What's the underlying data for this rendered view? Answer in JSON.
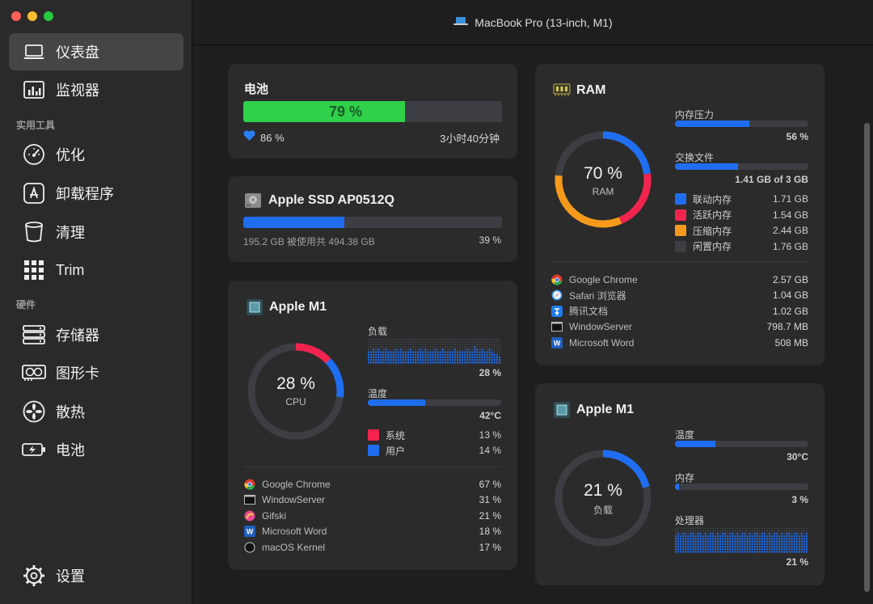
{
  "window": {
    "title": "MacBook Pro (13-inch, M1)",
    "traffic_colors": [
      "#fe5f57",
      "#febc2e",
      "#28c840"
    ]
  },
  "sidebar": {
    "items": [
      {
        "label": "仪表盘",
        "icon": "laptop-icon"
      },
      {
        "label": "监视器",
        "icon": "chart-icon"
      }
    ],
    "tools_label": "实用工具",
    "tools": [
      {
        "label": "优化",
        "icon": "gauge-icon"
      },
      {
        "label": "卸载程序",
        "icon": "appstore-icon"
      },
      {
        "label": "清理",
        "icon": "trash-icon"
      },
      {
        "label": "Trim",
        "icon": "grid-icon"
      }
    ],
    "hardware_label": "硬件",
    "hardware": [
      {
        "label": "存储器",
        "icon": "storage-icon"
      },
      {
        "label": "图形卡",
        "icon": "gpu-icon"
      },
      {
        "label": "散热",
        "icon": "fan-icon"
      },
      {
        "label": "电池",
        "icon": "battery-icon"
      }
    ],
    "settings_label": "设置"
  },
  "battery": {
    "title": "电池",
    "level_text": "79 %",
    "level": 79,
    "health": "86 %",
    "time_left": "3小时40分钟",
    "color": "#2fd04a"
  },
  "ssd": {
    "title": "Apple SSD AP0512Q",
    "usage_text": "195.2 GB 被使用共 494.38 GB",
    "percent_text": "39 %",
    "percent": 39,
    "color": "#1f6ef2"
  },
  "cpu": {
    "title": "Apple M1",
    "percent_text": "28 %",
    "ring_label": "CPU",
    "load_label": "负载",
    "load_value": "28 %",
    "temp_label": "温度",
    "temp_value": "42°C",
    "temp_fraction": 0.43,
    "system_label": "系统",
    "system_value": "13 %",
    "system_fraction": 0.13,
    "user_label": "用户",
    "user_value": "14 %",
    "user_fraction": 0.14,
    "history": [
      0.5,
      0.45,
      0.55,
      0.5,
      0.6,
      0.5,
      0.45,
      0.55,
      0.5,
      0.5,
      0.45,
      0.6,
      0.5,
      0.55,
      0.5,
      0.45,
      0.5,
      0.55,
      0.5,
      0.5,
      0.45,
      0.55,
      0.5,
      0.6,
      0.5,
      0.5,
      0.45,
      0.55,
      0.5,
      0.5,
      0.55,
      0.5,
      0.45,
      0.5,
      0.5,
      0.55,
      0.5,
      0.5,
      0.45,
      0.5,
      0.55,
      0.5,
      0.5,
      0.65,
      0.55,
      0.5,
      0.6,
      0.5,
      0.45,
      0.55,
      0.5,
      0.4,
      0.35,
      0.3
    ],
    "processes": [
      {
        "name": "Google Chrome",
        "value": "67 %",
        "icon": "chrome-icon"
      },
      {
        "name": "WindowServer",
        "value": "31 %",
        "icon": "window-icon"
      },
      {
        "name": "Gifski",
        "value": "21 %",
        "icon": "gifski-icon"
      },
      {
        "name": "Microsoft Word",
        "value": "18 %",
        "icon": "word-icon"
      },
      {
        "name": "macOS Kernel",
        "value": "17 %",
        "icon": "kernel-icon"
      }
    ]
  },
  "ram": {
    "title": "RAM",
    "percent_text": "70 %",
    "ring_label": "RAM",
    "pressure_label": "内存压力",
    "pressure_value": "56 %",
    "pressure_fraction": 0.56,
    "swap_label": "交换文件",
    "swap_value": "1.41 GB of 3 GB",
    "swap_fraction": 0.47,
    "legend": [
      {
        "label": "联动内存",
        "value": "1.71 GB",
        "color": "#1f6ef2"
      },
      {
        "label": "活跃内存",
        "value": "1.54 GB",
        "color": "#f2244e"
      },
      {
        "label": "压缩内存",
        "value": "2.44 GB",
        "color": "#f59a1b"
      },
      {
        "label": "闲置内存",
        "value": "1.76 GB",
        "color": "#3d3e44"
      }
    ],
    "processes": [
      {
        "name": "Google Chrome",
        "value": "2.57 GB",
        "icon": "chrome-icon"
      },
      {
        "name": "Safari 浏览器",
        "value": "1.04 GB",
        "icon": "safari-icon"
      },
      {
        "name": "腾讯文档",
        "value": "1.02 GB",
        "icon": "tencent-docs-icon"
      },
      {
        "name": "WindowServer",
        "value": "798.7 MB",
        "icon": "window-icon"
      },
      {
        "name": "Microsoft Word",
        "value": "508 MB",
        "icon": "word-icon"
      }
    ]
  },
  "gpu": {
    "title": "Apple M1",
    "percent_text": "21 %",
    "percent": 21,
    "ring_label": "负载",
    "temp_label": "温度",
    "temp_value": "30°C",
    "temp_fraction": 0.3,
    "mem_label": "内存",
    "mem_value": "3 %",
    "mem_fraction": 0.03,
    "proc_label": "处理器",
    "proc_value": "21 %",
    "history": [
      0.7,
      0.75,
      0.7,
      0.8,
      0.75,
      0.7,
      0.8,
      0.75,
      0.7,
      0.75,
      0.8,
      0.7,
      0.75,
      0.7,
      0.8,
      0.75,
      0.7,
      0.75,
      0.7,
      0.8,
      0.75,
      0.7,
      0.75,
      0.8,
      0.7,
      0.75,
      0.7,
      0.8,
      0.75,
      0.7,
      0.75,
      0.7,
      0.8,
      0.75,
      0.7,
      0.75,
      0.8,
      0.7,
      0.75,
      0.7,
      0.8,
      0.75,
      0.7,
      0.75,
      0.7,
      0.8,
      0.75,
      0.7,
      0.75,
      0.8,
      0.7,
      0.75,
      0.7,
      0.8
    ]
  },
  "colors": {
    "accent_blue": "#1f6ef2",
    "red": "#f2244e",
    "orange": "#f59a1b",
    "track": "#3d3e44"
  }
}
